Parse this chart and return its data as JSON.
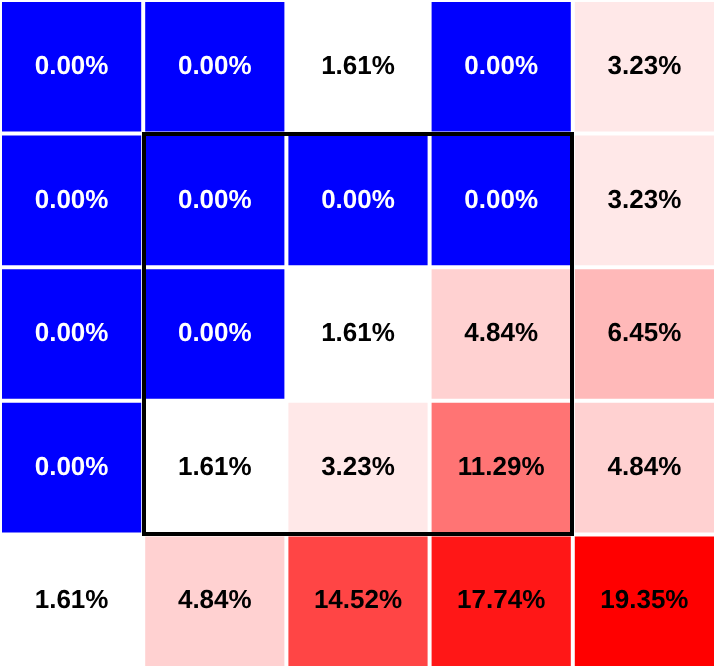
{
  "chart_data": {
    "type": "heatmap",
    "categories": [
      null,
      null,
      null,
      null,
      null
    ],
    "y_categories": [
      null,
      null,
      null,
      null,
      null
    ],
    "cells": [
      [
        0,
        0,
        1.61,
        0,
        3.23
      ],
      [
        0,
        0,
        0,
        0,
        3.23
      ],
      [
        0,
        0,
        1.61,
        4.84,
        6.45
      ],
      [
        0,
        1.61,
        3.23,
        11.29,
        4.84
      ],
      [
        1.61,
        4.84,
        14.52,
        17.74,
        19.35
      ]
    ],
    "cell_labels": [
      [
        "0.00%",
        "0.00%",
        "1.61%",
        "0.00%",
        "3.23%"
      ],
      [
        "0.00%",
        "0.00%",
        "0.00%",
        "0.00%",
        "3.23%"
      ],
      [
        "0.00%",
        "0.00%",
        "1.61%",
        "4.84%",
        "6.45%"
      ],
      [
        "0.00%",
        "1.61%",
        "3.23%",
        "11.29%",
        "4.84%"
      ],
      [
        "1.61%",
        "4.84%",
        "14.52%",
        "17.74%",
        "19.35%"
      ]
    ]
  }
}
